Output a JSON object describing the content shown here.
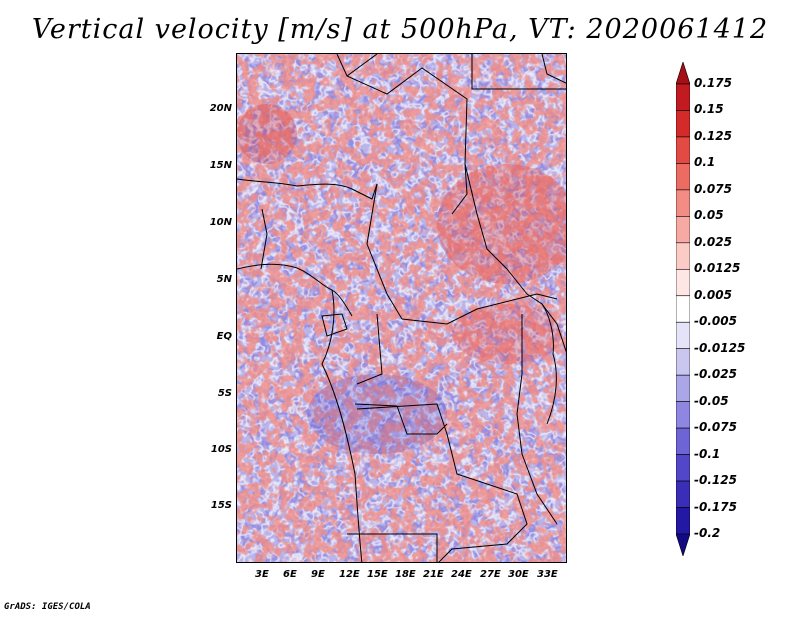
{
  "title": "Vertical velocity [m/s] at 500hPa, VT: 2020061412",
  "footer": "GrADS: IGES/COLA",
  "map": {
    "lat_labels": [
      "20N",
      "15N",
      "10N",
      "5N",
      "EQ",
      "5S",
      "10S",
      "15S"
    ],
    "lon_labels": [
      "3E",
      "6E",
      "9E",
      "12E",
      "15E",
      "18E",
      "21E",
      "24E",
      "27E",
      "30E",
      "33E"
    ],
    "lat_range": [
      -20,
      25
    ],
    "lon_range": [
      0,
      35
    ]
  },
  "colorbar": {
    "labels": [
      "0.175",
      "0.15",
      "0.125",
      "0.1",
      "0.075",
      "0.05",
      "0.025",
      "0.0125",
      "0.005",
      "-0.005",
      "-0.0125",
      "-0.025",
      "-0.05",
      "-0.075",
      "-0.1",
      "-0.125",
      "-0.175",
      "-0.2"
    ],
    "colors": [
      "#a50f15",
      "#c11b21",
      "#d52a2a",
      "#e34a44",
      "#ec6b63",
      "#f28c84",
      "#f7aaa3",
      "#fbcbc6",
      "#fde6e3",
      "#ffffff",
      "#e4e3f7",
      "#c9c7f0",
      "#aba6e8",
      "#8e86e0",
      "#6f64d6",
      "#5347c9",
      "#3a2db8",
      "#2318a3",
      "#120a85"
    ]
  }
}
